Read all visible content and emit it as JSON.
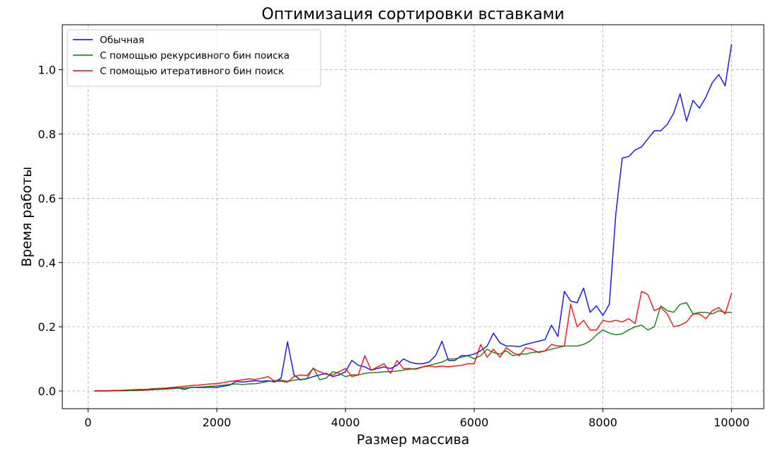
{
  "chart_data": {
    "type": "line",
    "title": "Оптимизация сортировки вставками",
    "xlabel": "Размер массива",
    "ylabel": "Время работы",
    "xlim": [
      -400,
      10500
    ],
    "ylim": [
      -0.055,
      1.14
    ],
    "xticks": [
      0,
      2000,
      4000,
      6000,
      8000,
      10000
    ],
    "yticks": [
      0.0,
      0.2,
      0.4,
      0.6,
      0.8,
      1.0
    ],
    "xtick_labels": [
      "0",
      "2000",
      "4000",
      "6000",
      "8000",
      "10000"
    ],
    "ytick_labels": [
      "0.0",
      "0.2",
      "0.4",
      "0.6",
      "0.8",
      "1.0"
    ],
    "grid": true,
    "legend_position": "top-left",
    "x": [
      100,
      200,
      300,
      400,
      500,
      600,
      700,
      800,
      900,
      1000,
      1100,
      1200,
      1300,
      1400,
      1500,
      1600,
      1700,
      1800,
      1900,
      2000,
      2100,
      2200,
      2300,
      2400,
      2500,
      2600,
      2700,
      2800,
      2900,
      3000,
      3100,
      3200,
      3300,
      3400,
      3500,
      3600,
      3700,
      3800,
      3900,
      4000,
      4100,
      4200,
      4300,
      4400,
      4500,
      4600,
      4700,
      4800,
      4900,
      5000,
      5100,
      5200,
      5300,
      5400,
      5500,
      5600,
      5700,
      5800,
      5900,
      6000,
      6100,
      6200,
      6300,
      6400,
      6500,
      6600,
      6700,
      6800,
      6900,
      7000,
      7100,
      7200,
      7300,
      7400,
      7500,
      7600,
      7700,
      7800,
      7900,
      8000,
      8100,
      8200,
      8300,
      8400,
      8500,
      8600,
      8700,
      8800,
      8900,
      9000,
      9100,
      9200,
      9300,
      9400,
      9500,
      9600,
      9700,
      9800,
      9900,
      10000
    ],
    "series": [
      {
        "name": "Обычная",
        "color": "#0000ff",
        "values": [
          0.001,
          0.001,
          0.001,
          0.001,
          0.001,
          0.002,
          0.002,
          0.003,
          0.003,
          0.005,
          0.006,
          0.007,
          0.009,
          0.01,
          0.005,
          0.012,
          0.011,
          0.011,
          0.012,
          0.011,
          0.015,
          0.018,
          0.03,
          0.028,
          0.03,
          0.032,
          0.03,
          0.032,
          0.028,
          0.04,
          0.153,
          0.05,
          0.035,
          0.038,
          0.045,
          0.05,
          0.055,
          0.045,
          0.05,
          0.06,
          0.095,
          0.08,
          0.075,
          0.065,
          0.07,
          0.075,
          0.07,
          0.08,
          0.1,
          0.09,
          0.085,
          0.085,
          0.09,
          0.11,
          0.155,
          0.095,
          0.095,
          0.11,
          0.11,
          0.115,
          0.125,
          0.14,
          0.18,
          0.15,
          0.14,
          0.14,
          0.138,
          0.145,
          0.15,
          0.155,
          0.16,
          0.205,
          0.17,
          0.31,
          0.28,
          0.275,
          0.32,
          0.245,
          0.265,
          0.235,
          0.27,
          0.55,
          0.725,
          0.73,
          0.75,
          0.76,
          0.785,
          0.81,
          0.81,
          0.83,
          0.865,
          0.925,
          0.84,
          0.905,
          0.88,
          0.915,
          0.96,
          0.985,
          0.95,
          1.08
        ]
      },
      {
        "name": "С помощью рекурсивного бин поиска",
        "color": "#008000",
        "values": [
          0.0,
          0.0,
          0.0,
          0.001,
          0.001,
          0.001,
          0.002,
          0.002,
          0.003,
          0.004,
          0.005,
          0.006,
          0.007,
          0.009,
          0.01,
          0.011,
          0.012,
          0.013,
          0.015,
          0.016,
          0.018,
          0.02,
          0.022,
          0.02,
          0.022,
          0.023,
          0.026,
          0.03,
          0.032,
          0.034,
          0.03,
          0.034,
          0.036,
          0.038,
          0.072,
          0.035,
          0.04,
          0.06,
          0.055,
          0.045,
          0.05,
          0.05,
          0.055,
          0.057,
          0.058,
          0.06,
          0.06,
          0.062,
          0.065,
          0.068,
          0.07,
          0.075,
          0.08,
          0.085,
          0.09,
          0.1,
          0.1,
          0.105,
          0.11,
          0.1,
          0.11,
          0.13,
          0.12,
          0.115,
          0.125,
          0.11,
          0.115,
          0.115,
          0.12,
          0.122,
          0.125,
          0.13,
          0.135,
          0.14,
          0.14,
          0.14,
          0.145,
          0.155,
          0.175,
          0.19,
          0.18,
          0.175,
          0.178,
          0.19,
          0.2,
          0.205,
          0.19,
          0.2,
          0.265,
          0.25,
          0.245,
          0.27,
          0.275,
          0.24,
          0.245,
          0.245,
          0.24,
          0.25,
          0.245,
          0.245
        ]
      },
      {
        "name": "С помощью итеративного бин поиск",
        "color": "#ff0000",
        "values": [
          0.0,
          0.001,
          0.001,
          0.002,
          0.002,
          0.003,
          0.004,
          0.005,
          0.005,
          0.007,
          0.008,
          0.009,
          0.011,
          0.013,
          0.015,
          0.017,
          0.018,
          0.02,
          0.022,
          0.023,
          0.026,
          0.03,
          0.032,
          0.035,
          0.038,
          0.036,
          0.04,
          0.045,
          0.03,
          0.03,
          0.028,
          0.045,
          0.05,
          0.048,
          0.07,
          0.06,
          0.052,
          0.05,
          0.06,
          0.07,
          0.045,
          0.05,
          0.11,
          0.065,
          0.075,
          0.085,
          0.055,
          0.095,
          0.07,
          0.07,
          0.068,
          0.075,
          0.078,
          0.075,
          0.078,
          0.075,
          0.078,
          0.08,
          0.085,
          0.085,
          0.145,
          0.105,
          0.13,
          0.105,
          0.135,
          0.12,
          0.11,
          0.135,
          0.13,
          0.12,
          0.125,
          0.145,
          0.14,
          0.14,
          0.27,
          0.2,
          0.22,
          0.19,
          0.19,
          0.22,
          0.215,
          0.22,
          0.215,
          0.225,
          0.21,
          0.31,
          0.3,
          0.25,
          0.26,
          0.24,
          0.2,
          0.205,
          0.215,
          0.24,
          0.24,
          0.225,
          0.25,
          0.26,
          0.24,
          0.305
        ]
      }
    ]
  }
}
